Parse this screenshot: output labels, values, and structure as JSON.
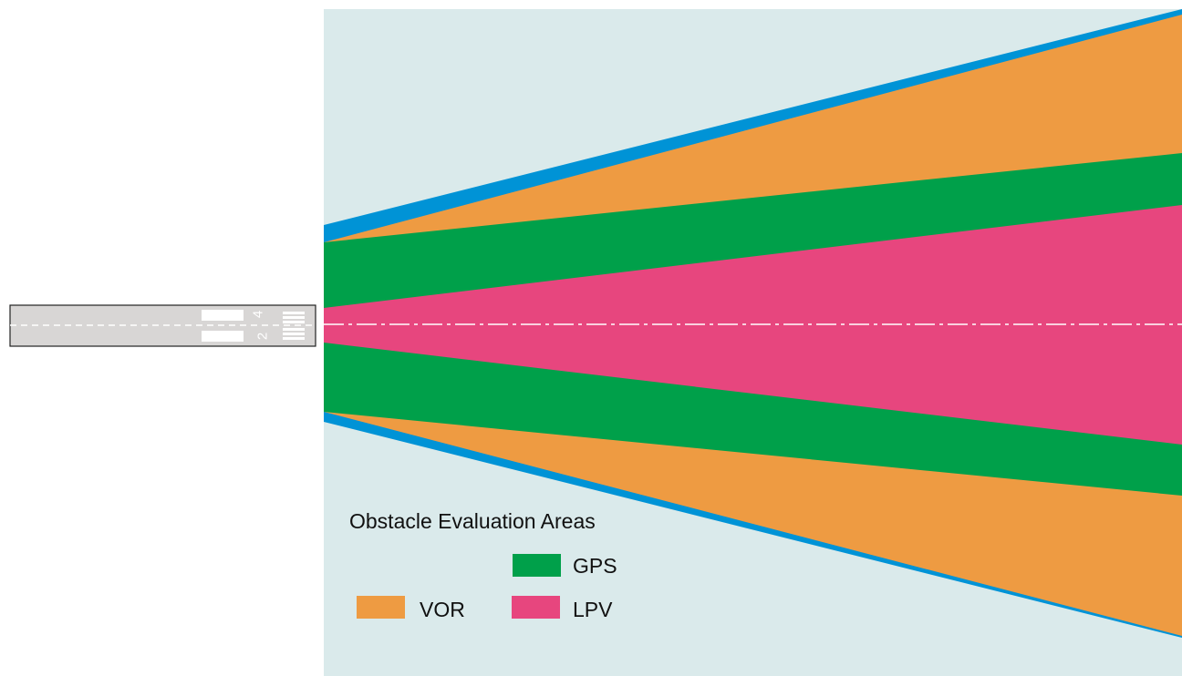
{
  "legend": {
    "title": "Obstacle Evaluation Areas",
    "items": [
      {
        "label": "GPS",
        "color": "#00A04A",
        "icon": "green-swatch"
      },
      {
        "label": "VOR",
        "color": "#EE9B42",
        "icon": "orange-swatch"
      },
      {
        "label": "LPV",
        "color": "#E7467E",
        "icon": "pink-swatch"
      }
    ]
  },
  "runway": {
    "numbers": [
      "4",
      "2"
    ]
  },
  "colors": {
    "background": "#DAEAEB",
    "outer_band": "#0093D6",
    "vor": "#EE9B42",
    "gps": "#00A04A",
    "lpv": "#E7467E",
    "runway_fill": "#D8D6D5",
    "runway_border": "#222222"
  }
}
